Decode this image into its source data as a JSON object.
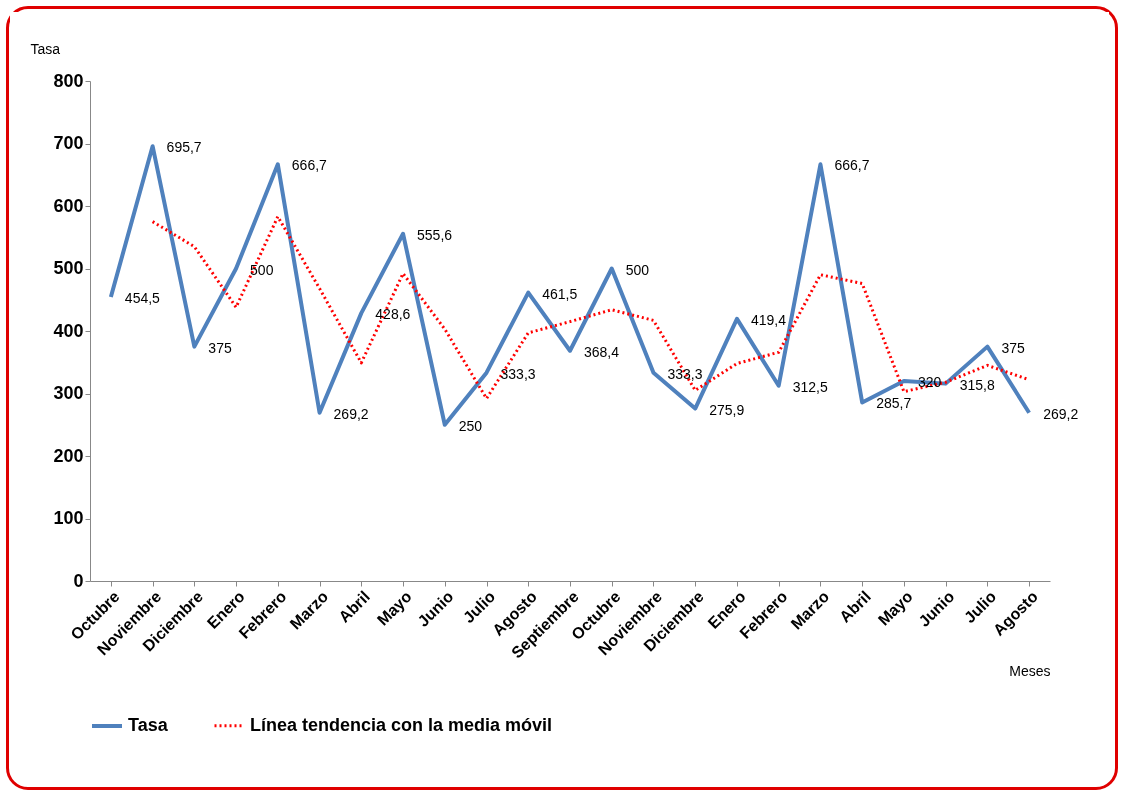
{
  "chart_data": {
    "type": "line",
    "xlabel": "Meses",
    "ylabel": "Tasa",
    "categories": [
      "Octubre",
      "Noviembre",
      "Diciembre",
      "Enero",
      "Febrero",
      "Marzo",
      "Abril",
      "Mayo",
      "Junio",
      "Julio",
      "Agosto",
      "Septiembre",
      "Octubre",
      "Noviembre",
      "Diciembre",
      "Enero",
      "Febrero",
      "Marzo",
      "Abril",
      "Mayo",
      "Junio",
      "Julio",
      "Agosto"
    ],
    "series": [
      {
        "name": "Tasa",
        "color": "#4f81bd",
        "line_style": "solid",
        "values": [
          454.5,
          695.7,
          375,
          500,
          666.7,
          269.2,
          428.6,
          555.6,
          250,
          333.3,
          461.5,
          368.4,
          500,
          333.3,
          275.9,
          419.4,
          312.5,
          666.7,
          285.7,
          320,
          315.8,
          375,
          269.2
        ],
        "value_labels": [
          "454,5",
          "695,7",
          "375",
          "500",
          "666,7",
          "269,2",
          "428,6",
          "555,6",
          "250",
          "333,3",
          "461,5",
          "368,4",
          "500",
          "333,3",
          "275,9",
          "419,4",
          "312,5",
          "666,7",
          "285,7",
          "320",
          "315,8",
          "375",
          "269,2"
        ]
      },
      {
        "name": "Línea tendencia con la media móvil",
        "color": "#ff0000",
        "line_style": "dotted",
        "values": [
          null,
          575,
          535,
          438,
          583,
          468,
          349,
          492,
          403,
          292,
          397,
          415,
          434,
          417,
          305,
          348,
          366,
          490,
          476,
          303,
          318,
          345,
          322
        ]
      }
    ],
    "ylim": [
      0,
      800
    ],
    "yticks": [
      0,
      100,
      200,
      300,
      400,
      500,
      600,
      700,
      800
    ],
    "grid": false,
    "legend": "bottom",
    "marker": "none"
  }
}
